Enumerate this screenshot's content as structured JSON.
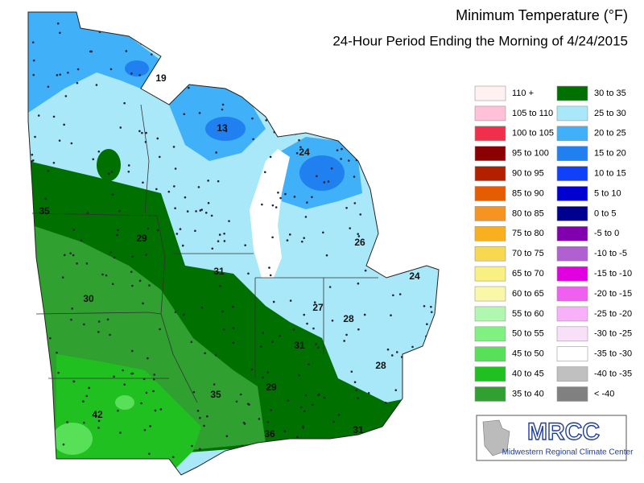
{
  "header": {
    "title": "Minimum Temperature (°F)",
    "subtitle": "24-Hour Period Ending the Morning of 4/24/2015"
  },
  "map": {
    "station_values": [
      19,
      13,
      24,
      35,
      29,
      31,
      26,
      24,
      30,
      27,
      28,
      31,
      28,
      29,
      35,
      42,
      36,
      31
    ]
  },
  "legend": [
    {
      "label": "110 +",
      "color": "#fff0f2"
    },
    {
      "label": "105 to 110",
      "color": "#ffc0d8"
    },
    {
      "label": "100 to 105",
      "color": "#f0304a"
    },
    {
      "label": "95 to 100",
      "color": "#8b0000"
    },
    {
      "label": "90 to 95",
      "color": "#b22000"
    },
    {
      "label": "85 to 90",
      "color": "#e65c00"
    },
    {
      "label": "80 to 85",
      "color": "#f59420"
    },
    {
      "label": "75 to 80",
      "color": "#f8b020"
    },
    {
      "label": "70 to 75",
      "color": "#f8d850"
    },
    {
      "label": "65 to 70",
      "color": "#f8f080"
    },
    {
      "label": "60 to 65",
      "color": "#f8f8a8"
    },
    {
      "label": "55 to 60",
      "color": "#b0f8b0"
    },
    {
      "label": "50 to 55",
      "color": "#80f080"
    },
    {
      "label": "45 to 50",
      "color": "#58e058"
    },
    {
      "label": "40 to 45",
      "color": "#20c020"
    },
    {
      "label": "35 to 40",
      "color": "#30a030"
    },
    {
      "label": "30 to 35",
      "color": "#007000"
    },
    {
      "label": "25 to 30",
      "color": "#a8e8f8"
    },
    {
      "label": "20 to 25",
      "color": "#40b0f8"
    },
    {
      "label": "15 to 20",
      "color": "#2080f0"
    },
    {
      "label": "10 to 15",
      "color": "#1040f8"
    },
    {
      "label": "5 to 10",
      "color": "#0000d0"
    },
    {
      "label": "0 to 5",
      "color": "#000090"
    },
    {
      "label": "-5 to 0",
      "color": "#8000b0"
    },
    {
      "label": "-10 to -5",
      "color": "#b060d0"
    },
    {
      "label": "-15 to -10",
      "color": "#e000e0"
    },
    {
      "label": "-20 to -15",
      "color": "#f060f0"
    },
    {
      "label": "-25 to -20",
      "color": "#f8b0f8"
    },
    {
      "label": "-30 to -25",
      "color": "#f8e0f8"
    },
    {
      "label": "-35 to -30",
      "color": "#ffffff"
    },
    {
      "label": "-40 to -35",
      "color": "#c0c0c0"
    },
    {
      "label": "< -40",
      "color": "#808080"
    }
  ],
  "logo": {
    "name": "MRCC",
    "caption": "Midwestern Regional Climate Center"
  }
}
